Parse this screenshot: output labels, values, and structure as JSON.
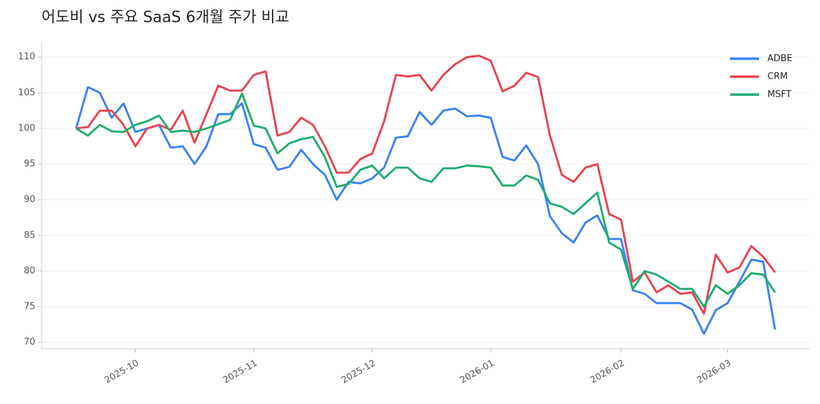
{
  "chart_data": {
    "type": "line",
    "title": "어도비 vs 주요 SaaS 6개월 주가 비교",
    "categories": [
      null,
      null,
      null,
      null,
      null,
      "2025-10",
      null,
      null,
      null,
      null,
      null,
      null,
      null,
      null,
      null,
      "2025-11",
      null,
      null,
      null,
      null,
      null,
      null,
      null,
      null,
      null,
      "2025-12",
      null,
      null,
      null,
      null,
      null,
      null,
      null,
      null,
      null,
      "2026-01",
      null,
      null,
      null,
      null,
      null,
      null,
      null,
      null,
      null,
      null,
      "2026-02",
      null,
      null,
      null,
      null,
      null,
      null,
      null,
      null,
      "2026-03",
      null,
      null,
      null,
      null
    ],
    "series": [
      {
        "name": "ADBE",
        "color": "#3b82f6",
        "values": [
          100,
          105.8,
          105,
          101.5,
          103.5,
          99.5,
          100,
          100.5,
          97.3,
          97.5,
          95,
          97.5,
          102,
          102,
          103.5,
          97.8,
          97.3,
          94.2,
          94.6,
          97,
          95,
          93.5,
          90,
          92.5,
          92.3,
          93,
          94.5,
          98.7,
          98.9,
          102.3,
          100.5,
          102.5,
          102.8,
          101.7,
          101.8,
          101.5,
          96,
          95.5,
          97.6,
          95,
          87.7,
          85.3,
          84,
          86.8,
          87.8,
          84.5,
          84.5,
          77.3,
          76.8,
          75.5,
          75.5,
          75.5,
          74.6,
          71.2,
          74.5,
          75.5,
          78.5,
          81.6,
          81.3,
          71.8
        ]
      },
      {
        "name": "CRM",
        "color": "#e8434f",
        "values": [
          100,
          100.2,
          102.5,
          102.5,
          100.5,
          97.5,
          100,
          100.5,
          99.8,
          102.5,
          98,
          102,
          106,
          105.3,
          105.3,
          107.5,
          108,
          99,
          99.5,
          101.5,
          100.5,
          97.5,
          93.8,
          93.8,
          95.7,
          96.5,
          101,
          107.5,
          107.3,
          107.5,
          105.3,
          107.5,
          109,
          110,
          110.2,
          109.5,
          105.2,
          106,
          107.8,
          107.2,
          99,
          93.5,
          92.5,
          94.5,
          95,
          88,
          87.2,
          78.5,
          79.8,
          77,
          78,
          76.8,
          77,
          74,
          82.3,
          79.8,
          80.5,
          83.5,
          82,
          79.8
        ]
      },
      {
        "name": "MSFT",
        "color": "#1fad6e",
        "values": [
          100,
          99,
          100.5,
          99.6,
          99.5,
          100.5,
          101,
          101.8,
          99.5,
          99.7,
          99.5,
          100,
          100.6,
          101.2,
          104.9,
          100.4,
          100,
          96.5,
          97.9,
          98.5,
          98.8,
          96,
          91.8,
          92.2,
          94.2,
          94.8,
          93,
          94.5,
          94.5,
          93,
          92.5,
          94.4,
          94.4,
          94.8,
          94.7,
          94.5,
          92,
          92,
          93.4,
          92.8,
          89.5,
          89,
          88,
          89.5,
          91,
          84,
          83,
          77.5,
          80,
          79.5,
          78.5,
          77.5,
          77.5,
          75,
          78,
          76.8,
          78,
          79.7,
          79.5,
          77
        ]
      }
    ],
    "ylim": [
      69.1,
      112.2
    ],
    "yticks": [
      70,
      75,
      80,
      85,
      90,
      95,
      100,
      105,
      110
    ],
    "grid": true,
    "legend": "upper right"
  }
}
